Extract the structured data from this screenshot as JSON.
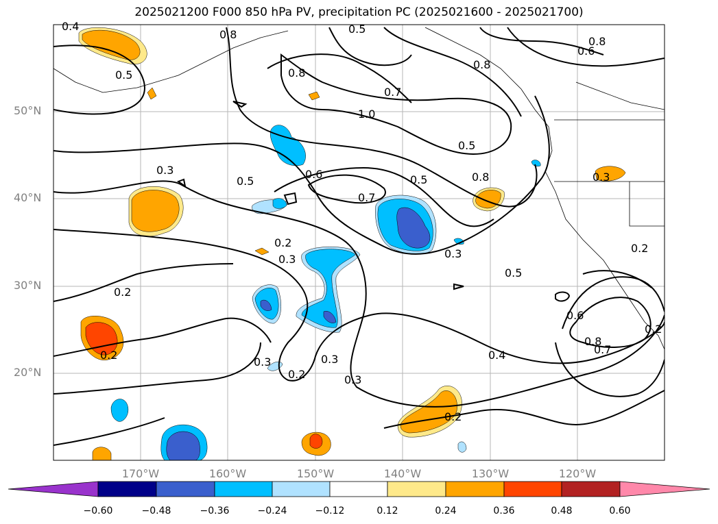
{
  "title": "2025021200 F000 850 hPa PV, precipitation PC (2025021600 - 2025021700)",
  "lat_labels": [
    "50°N",
    "40°N",
    "30°N",
    "20°N"
  ],
  "lon_labels": [
    "170°W",
    "160°W",
    "150°W",
    "140°W",
    "130°W",
    "120°W"
  ],
  "colorbar": {
    "tick_labels": [
      "−0.60",
      "−0.48",
      "−0.36",
      "−0.24",
      "−0.12",
      "0.12",
      "0.24",
      "0.36",
      "0.48",
      "0.60"
    ],
    "colors": [
      "#9933cc",
      "#000088",
      "#3a5fcd",
      "#00bfff",
      "#b0e2ff",
      "#ffffff",
      "#fee98a",
      "#ffa500",
      "#ff4500",
      "#b22222",
      "#ff88aa"
    ]
  },
  "contour_labels": [
    "0.4",
    "0.5",
    "0.8",
    "0.5",
    "0.8",
    "0.6",
    "0.8",
    "1.0",
    "0.7",
    "0.8",
    "0.5",
    "0.3",
    "0.5",
    "0.6",
    "0.7",
    "0.5",
    "0.8",
    "0.3",
    "0.3",
    "0.3",
    "0.2",
    "0.3",
    "0.5",
    "0.6",
    "0.8",
    "0.7",
    "0.4",
    "0.2",
    "0.2",
    "0.3",
    "0.2",
    "0.3",
    "0.2",
    "0.2",
    "0.2"
  ],
  "map": {
    "projection": "PlateCarree",
    "lon_range": [
      -180,
      -110
    ],
    "lat_range": [
      10,
      60
    ],
    "fill_variable": "precipitation PC",
    "contour_variable": "850 hPa PV",
    "grid": true
  }
}
